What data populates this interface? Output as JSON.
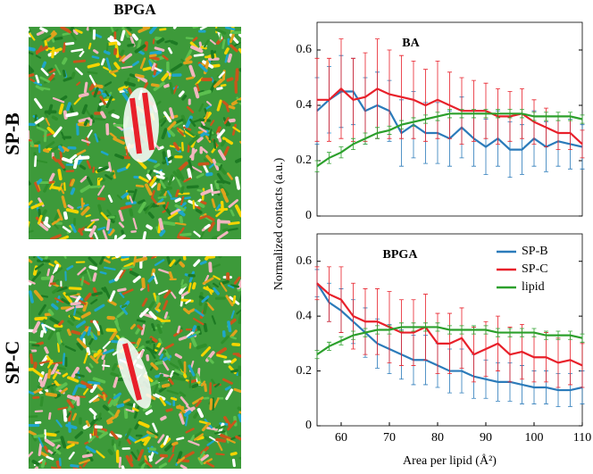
{
  "images": {
    "title": "BPGA",
    "labels": [
      "SP-B",
      "SP-C"
    ]
  },
  "chart_data": [
    {
      "type": "line",
      "title": "BA",
      "ylabel": "Normalized contacts (a.u.)",
      "x": [
        55,
        57.5,
        60,
        62.5,
        65,
        67.5,
        70,
        72.5,
        75,
        77.5,
        80,
        82.5,
        85,
        87.5,
        90,
        92.5,
        95,
        97.5,
        100,
        102.5,
        105,
        107.5,
        110
      ],
      "xlim": [
        55,
        110
      ],
      "ylim": [
        0,
        0.7
      ],
      "yticks": [
        0,
        0.2,
        0.4,
        0.6
      ],
      "series": [
        {
          "color": "#2b7bba",
          "values": [
            0.38,
            0.42,
            0.45,
            0.45,
            0.38,
            0.4,
            0.38,
            0.3,
            0.33,
            0.3,
            0.3,
            0.28,
            0.32,
            0.28,
            0.25,
            0.28,
            0.24,
            0.24,
            0.28,
            0.25,
            0.27,
            0.26,
            0.25
          ],
          "errors": [
            0.12,
            0.12,
            0.13,
            0.12,
            0.12,
            0.12,
            0.11,
            0.12,
            0.12,
            0.11,
            0.11,
            0.1,
            0.11,
            0.1,
            0.1,
            0.1,
            0.1,
            0.09,
            0.1,
            0.09,
            0.09,
            0.09,
            0.08
          ]
        },
        {
          "color": "#e8202a",
          "values": [
            0.42,
            0.42,
            0.46,
            0.42,
            0.43,
            0.46,
            0.44,
            0.43,
            0.42,
            0.4,
            0.42,
            0.4,
            0.38,
            0.38,
            0.38,
            0.36,
            0.36,
            0.37,
            0.34,
            0.32,
            0.3,
            0.3,
            0.26
          ],
          "errors": [
            0.15,
            0.15,
            0.18,
            0.15,
            0.16,
            0.18,
            0.16,
            0.15,
            0.14,
            0.13,
            0.14,
            0.12,
            0.12,
            0.11,
            0.1,
            0.1,
            0.09,
            0.09,
            0.08,
            0.07,
            0.06,
            0.06,
            0.05
          ]
        },
        {
          "color": "#2ca02c",
          "values": [
            0.18,
            0.21,
            0.23,
            0.26,
            0.28,
            0.3,
            0.31,
            0.33,
            0.34,
            0.35,
            0.36,
            0.37,
            0.37,
            0.37,
            0.37,
            0.37,
            0.37,
            0.37,
            0.36,
            0.36,
            0.36,
            0.36,
            0.35
          ],
          "errors": [
            0.02,
            0.02,
            0.02,
            0.02,
            0.02,
            0.02,
            0.015,
            0.015,
            0.015,
            0.015,
            0.015,
            0.015,
            0.015,
            0.015,
            0.015,
            0.015,
            0.015,
            0.015,
            0.015,
            0.015,
            0.015,
            0.015,
            0.015
          ]
        }
      ]
    },
    {
      "type": "line",
      "title": "BPGA",
      "xlabel": "Area per lipid (Å²)",
      "legend": "upper right",
      "x": [
        55,
        57.5,
        60,
        62.5,
        65,
        67.5,
        70,
        72.5,
        75,
        77.5,
        80,
        82.5,
        85,
        87.5,
        90,
        92.5,
        95,
        97.5,
        100,
        102.5,
        105,
        107.5,
        110
      ],
      "xlim": [
        55,
        110
      ],
      "xticks": [
        60,
        70,
        80,
        90,
        100,
        110
      ],
      "ylim": [
        0,
        0.7
      ],
      "yticks": [
        0,
        0.2,
        0.4,
        0.6
      ],
      "series": [
        {
          "name": "SP-B",
          "color": "#2b7bba",
          "values": [
            0.52,
            0.45,
            0.42,
            0.38,
            0.34,
            0.3,
            0.28,
            0.26,
            0.24,
            0.24,
            0.22,
            0.2,
            0.2,
            0.18,
            0.17,
            0.16,
            0.16,
            0.15,
            0.14,
            0.14,
            0.13,
            0.13,
            0.14
          ],
          "errors": [
            0.05,
            0.07,
            0.08,
            0.08,
            0.09,
            0.09,
            0.09,
            0.09,
            0.09,
            0.09,
            0.08,
            0.08,
            0.08,
            0.08,
            0.07,
            0.07,
            0.07,
            0.07,
            0.06,
            0.06,
            0.06,
            0.06,
            0.06
          ]
        },
        {
          "name": "SP-C",
          "color": "#e8202a",
          "values": [
            0.52,
            0.48,
            0.46,
            0.4,
            0.38,
            0.38,
            0.36,
            0.34,
            0.34,
            0.36,
            0.3,
            0.3,
            0.32,
            0.26,
            0.28,
            0.3,
            0.26,
            0.27,
            0.25,
            0.25,
            0.23,
            0.24,
            0.22
          ],
          "errors": [
            0.06,
            0.1,
            0.12,
            0.12,
            0.12,
            0.12,
            0.13,
            0.12,
            0.12,
            0.12,
            0.11,
            0.11,
            0.11,
            0.1,
            0.1,
            0.1,
            0.1,
            0.1,
            0.09,
            0.09,
            0.09,
            0.09,
            0.08
          ]
        },
        {
          "name": "lipid",
          "color": "#2ca02c",
          "values": [
            0.26,
            0.29,
            0.31,
            0.33,
            0.34,
            0.35,
            0.35,
            0.36,
            0.36,
            0.36,
            0.36,
            0.35,
            0.35,
            0.35,
            0.35,
            0.34,
            0.34,
            0.34,
            0.34,
            0.33,
            0.33,
            0.33,
            0.32
          ],
          "errors": [
            0.015,
            0.015,
            0.015,
            0.015,
            0.015,
            0.015,
            0.015,
            0.015,
            0.015,
            0.015,
            0.015,
            0.015,
            0.015,
            0.015,
            0.015,
            0.015,
            0.015,
            0.015,
            0.015,
            0.015,
            0.015,
            0.015,
            0.015
          ]
        }
      ]
    }
  ]
}
